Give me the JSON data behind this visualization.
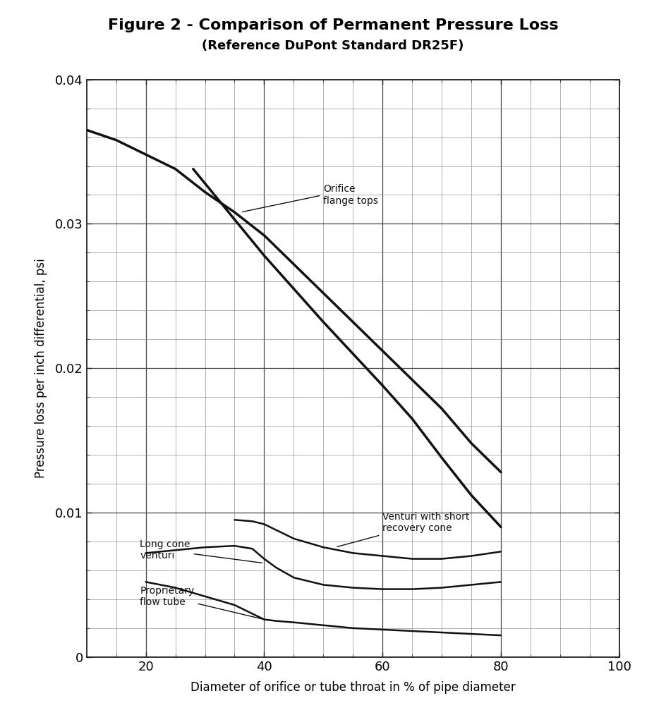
{
  "title_line1": "Figure 2 - Comparison of Permanent Pressure Loss",
  "title_line2": "(Reference DuPont Standard DR25F)",
  "xlabel": "Diameter of orifice or tube throat in % of pipe diameter",
  "ylabel": "Pressure loss per inch differential, psi",
  "xlim": [
    10,
    100
  ],
  "ylim": [
    0,
    0.04
  ],
  "xticks": [
    20,
    40,
    60,
    80,
    100
  ],
  "yticks": [
    0,
    0.01,
    0.02,
    0.03,
    0.04
  ],
  "orifice1_x": [
    10,
    15,
    20,
    25,
    30,
    35,
    40,
    45,
    50,
    55,
    60,
    65,
    70,
    75,
    80
  ],
  "orifice1_y": [
    0.0365,
    0.0358,
    0.0348,
    0.0338,
    0.0322,
    0.0308,
    0.0292,
    0.0272,
    0.0252,
    0.0232,
    0.0212,
    0.0192,
    0.0172,
    0.0148,
    0.0128
  ],
  "orifice2_x": [
    28,
    32,
    36,
    40,
    45,
    50,
    55,
    60,
    65,
    70,
    75,
    80
  ],
  "orifice2_y": [
    0.0338,
    0.0318,
    0.0298,
    0.0278,
    0.0255,
    0.0232,
    0.021,
    0.0188,
    0.0165,
    0.0138,
    0.0112,
    0.009
  ],
  "venturi_short_x": [
    35,
    38,
    40,
    42,
    45,
    50,
    55,
    60,
    65,
    70,
    75,
    80
  ],
  "venturi_short_y": [
    0.0095,
    0.0094,
    0.0092,
    0.0088,
    0.0082,
    0.0076,
    0.0072,
    0.007,
    0.0068,
    0.0068,
    0.007,
    0.0073
  ],
  "long_cone_x": [
    20,
    25,
    30,
    35,
    38,
    40,
    42,
    45,
    50,
    55,
    60,
    65,
    70,
    75,
    80
  ],
  "long_cone_y": [
    0.0072,
    0.0074,
    0.0076,
    0.0077,
    0.0075,
    0.0068,
    0.0062,
    0.0055,
    0.005,
    0.0048,
    0.0047,
    0.0047,
    0.0048,
    0.005,
    0.0052
  ],
  "prop_tube_x": [
    20,
    25,
    30,
    35,
    38,
    40,
    42,
    45,
    50,
    55,
    60,
    65,
    70,
    75,
    80
  ],
  "prop_tube_y": [
    0.0052,
    0.0048,
    0.0042,
    0.0036,
    0.003,
    0.0026,
    0.0025,
    0.0024,
    0.0022,
    0.002,
    0.0019,
    0.0018,
    0.0017,
    0.0016,
    0.0015
  ],
  "line_color": "#111111",
  "bg_color": "#ffffff",
  "grid_major_color": "#444444",
  "grid_minor_color": "#888888"
}
